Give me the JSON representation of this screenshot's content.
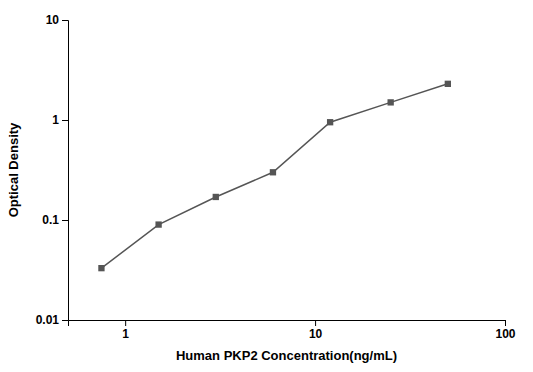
{
  "chart_data": {
    "type": "line",
    "xlabel": "Human PKP2 Concentration(ng/mL)",
    "ylabel": "Optical Density",
    "x": [
      0.75,
      1.5,
      3.0,
      6.0,
      12.0,
      25.0,
      50.0
    ],
    "values": [
      0.033,
      0.09,
      0.17,
      0.3,
      0.95,
      1.5,
      2.3
    ],
    "color": "#555555",
    "marker": "square",
    "log": true,
    "xlim": [
      0.5,
      100
    ],
    "ylim": [
      0.01,
      10
    ],
    "xticks": [
      1,
      10,
      100
    ],
    "yticks": [
      0.01,
      0.1,
      1,
      10
    ],
    "grid": false
  }
}
